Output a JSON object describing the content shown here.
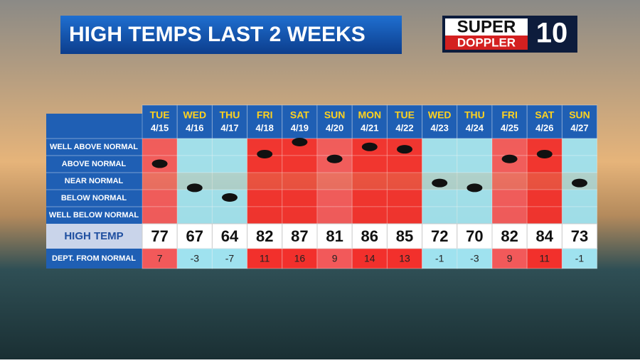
{
  "header": {
    "title": "HIGH TEMPS LAST 2 WEEKS",
    "logo": {
      "line1": "SUPER",
      "line2": "DOPPLER",
      "number": "10"
    }
  },
  "table": {
    "row_labels": [
      "WELL ABOVE NORMAL",
      "ABOVE NORMAL",
      "NEAR NORMAL",
      "BELOW NORMAL",
      "WELL BELOW NORMAL"
    ],
    "high_label": "HIGH TEMP",
    "dept_label": "DEPT. FROM NORMAL",
    "columns": [
      {
        "day": "TUE",
        "date": "4/15",
        "high": 77,
        "departure": 7
      },
      {
        "day": "WED",
        "date": "4/16",
        "high": 67,
        "departure": -3
      },
      {
        "day": "THU",
        "date": "4/17",
        "high": 64,
        "departure": -7
      },
      {
        "day": "FRI",
        "date": "4/18",
        "high": 82,
        "departure": 11
      },
      {
        "day": "SAT",
        "date": "4/19",
        "high": 87,
        "departure": 16
      },
      {
        "day": "SUN",
        "date": "4/20",
        "high": 81,
        "departure": 9
      },
      {
        "day": "MON",
        "date": "4/21",
        "high": 86,
        "departure": 14
      },
      {
        "day": "TUE",
        "date": "4/22",
        "high": 85,
        "departure": 13
      },
      {
        "day": "WED",
        "date": "4/23",
        "high": 72,
        "departure": -1
      },
      {
        "day": "THU",
        "date": "4/24",
        "high": 70,
        "departure": -3
      },
      {
        "day": "FRI",
        "date": "4/25",
        "high": 82,
        "departure": 9
      },
      {
        "day": "SAT",
        "date": "4/26",
        "high": 84,
        "departure": 11
      },
      {
        "day": "SUN",
        "date": "4/27",
        "high": 73,
        "departure": -1
      }
    ]
  }
}
